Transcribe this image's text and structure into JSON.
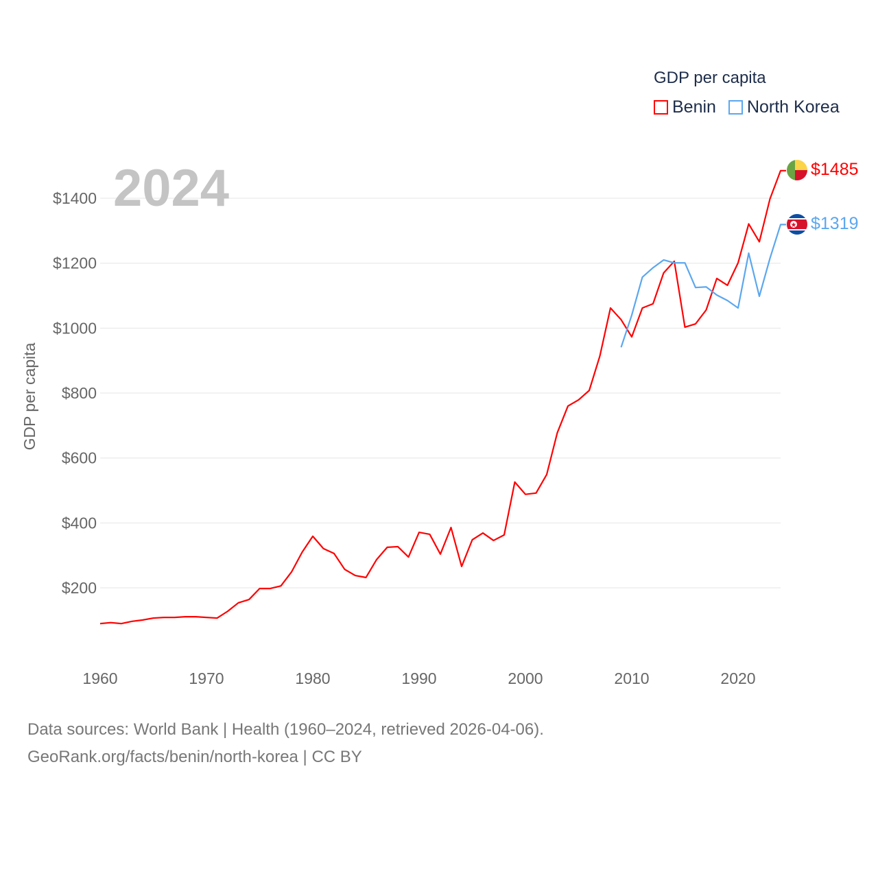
{
  "chart_data": {
    "type": "line",
    "title": "GDP per capita",
    "year_label": "2024",
    "xlabel": "",
    "ylabel": "GDP per capita",
    "xlim": [
      1960,
      2024
    ],
    "ylim": [
      0,
      1500
    ],
    "x_ticks": [
      1960,
      1970,
      1980,
      1990,
      2000,
      2010,
      2020
    ],
    "y_ticks": [
      200,
      400,
      600,
      800,
      1000,
      1200,
      1400
    ],
    "y_tick_labels": [
      "$200",
      "$400",
      "$600",
      "$800",
      "$1000",
      "$1200",
      "$1400"
    ],
    "grid": true,
    "legend_position": "top-right",
    "series": [
      {
        "name": "Benin",
        "color": "#ff0000",
        "end_label": "$1485",
        "start_year": 1960,
        "values": [
          90,
          93,
          90,
          97,
          101,
          107,
          109,
          109,
          111,
          111,
          109,
          107,
          128,
          154,
          164,
          198,
          198,
          206,
          249,
          310,
          359,
          321,
          306,
          257,
          238,
          232,
          287,
          325,
          327,
          295,
          371,
          365,
          304,
          386,
          266,
          348,
          369,
          346,
          363,
          526,
          488,
          492,
          549,
          678,
          760,
          779,
          808,
          914,
          1062,
          1026,
          973,
          1062,
          1075,
          1170,
          1206,
          1003,
          1013,
          1056,
          1153,
          1132,
          1201,
          1321,
          1266,
          1398,
          1485
        ]
      },
      {
        "name": "North Korea",
        "color": "#5ba7ee",
        "end_label": "$1319",
        "start_year": 2009,
        "values": [
          941,
          1040,
          1157,
          1186,
          1210,
          1201,
          1201,
          1125,
          1127,
          1102,
          1085,
          1062,
          1231,
          1098,
          1215,
          1319
        ]
      }
    ]
  },
  "footer": {
    "line1": "Data sources: World Bank | Health (1960–2024, retrieved 2026-04-06).",
    "line2": "GeoRank.org/facts/benin/north-korea | CC BY"
  }
}
